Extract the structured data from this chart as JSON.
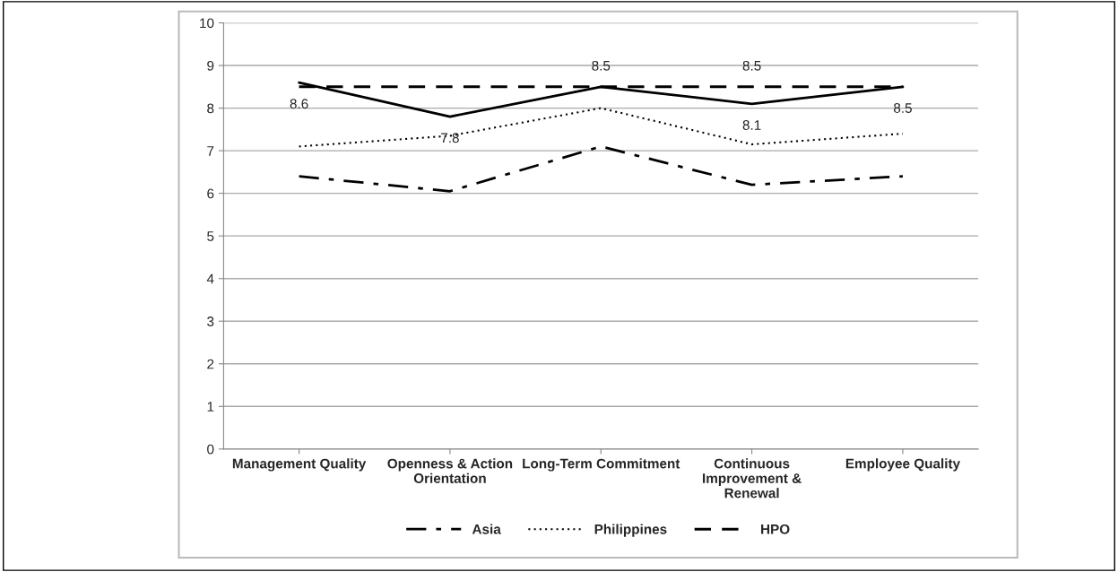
{
  "chart_data": {
    "type": "line",
    "categories": [
      "Management Quality",
      "Openness & Action Orientation",
      "Long-Term Commitment",
      "Continuous Improvement & Renewal",
      "Employee Quality"
    ],
    "series": [
      {
        "color": "#000000",
        "line_style": "solid",
        "values": [
          8.6,
          7.8,
          8.5,
          8.1,
          8.5
        ],
        "value_labels": [
          "8.6",
          "7.8",
          "8.5",
          "8.1",
          "8.5"
        ]
      },
      {
        "name": "Asia",
        "color": "#000000",
        "line_style": "dashdot",
        "values": [
          6.4,
          6.05,
          7.1,
          6.2,
          6.4
        ]
      },
      {
        "name": "Philippines",
        "color": "#000000",
        "line_style": "dotted",
        "values": [
          7.1,
          7.35,
          8.0,
          7.15,
          7.4
        ]
      },
      {
        "name": "HPO",
        "color": "#000000",
        "line_style": "dashed",
        "values": [
          8.5,
          8.5,
          8.5,
          8.5,
          8.5
        ],
        "value_labels": [
          null,
          null,
          null,
          "8.5",
          null
        ]
      }
    ],
    "ylim": [
      0,
      10
    ],
    "yticks": [
      0,
      1,
      2,
      3,
      4,
      5,
      6,
      7,
      8,
      9,
      10
    ],
    "grid": "y",
    "legend": "bottom",
    "marker": "none"
  }
}
